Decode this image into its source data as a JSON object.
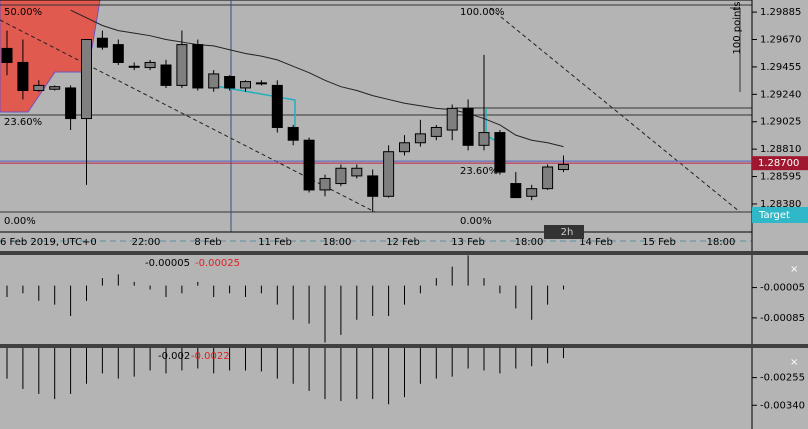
{
  "chart_data": [
    {
      "type": "candlestick",
      "up_color": "#7f7f7f",
      "down_color": "#000000",
      "ma_color": "#222222",
      "ylim": [
        1.2816,
        1.2998
      ],
      "yticks": [
        1.29885,
        {
          "value": 1.2967,
          "label": "1.29670"
        },
        1.29455,
        {
          "value": 1.2924,
          "label": "1.29240"
        },
        1.29025,
        {
          "value": 1.2881,
          "label": "1.28810"
        },
        1.28595,
        {
          "value": 1.2838,
          "label": "1.28380"
        }
      ],
      "current_price": {
        "value": 1.287,
        "label": "1.28700"
      },
      "open": [
        1.296,
        1.2949,
        1.2927,
        1.2928,
        1.2929,
        1.2905,
        1.2968,
        1.2963,
        1.2946,
        1.2945,
        1.2947,
        1.2931,
        1.2963,
        1.2929,
        1.2938,
        1.2929,
        1.2933,
        1.2931,
        1.2898,
        1.2888,
        1.2849,
        1.2854,
        1.286,
        1.286,
        1.2844,
        1.2879,
        1.2886,
        1.2891,
        1.2896,
        1.2913,
        1.2884,
        1.2894,
        1.2854,
        1.2844,
        1.285,
        1.2865
      ],
      "high": [
        1.2974,
        1.2967,
        1.2935,
        1.2931,
        1.2931,
        1.2967,
        1.2974,
        1.2967,
        1.2949,
        1.2951,
        1.2951,
        1.2974,
        1.2967,
        1.2943,
        1.2939,
        1.2935,
        1.2935,
        1.2935,
        1.29,
        1.289,
        1.2861,
        1.2869,
        1.2869,
        1.2865,
        1.2884,
        1.2892,
        1.2904,
        1.29,
        1.2916,
        1.292,
        1.2955,
        1.2896,
        1.2863,
        1.2853,
        1.2869,
        1.2876
      ],
      "low": [
        1.2939,
        1.292,
        1.2926,
        1.2927,
        1.2896,
        1.2853,
        1.2959,
        1.2947,
        1.2943,
        1.2943,
        1.2929,
        1.2929,
        1.2927,
        1.2926,
        1.2927,
        1.2926,
        1.2931,
        1.2894,
        1.2884,
        1.2847,
        1.2844,
        1.2852,
        1.2858,
        1.2832,
        1.2843,
        1.2876,
        1.2883,
        1.2888,
        1.2888,
        1.288,
        1.288,
        1.2861,
        1.2843,
        1.2841,
        1.2849,
        1.2863
      ],
      "close": [
        1.2949,
        1.2927,
        1.2931,
        1.293,
        1.2905,
        1.2967,
        1.2961,
        1.2949,
        1.2946,
        1.2949,
        1.2931,
        1.2963,
        1.2929,
        1.294,
        1.2929,
        1.2934,
        1.2933,
        1.2898,
        1.2888,
        1.2849,
        1.2858,
        1.2866,
        1.2866,
        1.2844,
        1.2879,
        1.2886,
        1.2893,
        1.2898,
        1.2913,
        1.2884,
        1.2894,
        1.2863,
        1.2843,
        1.285,
        1.2867,
        1.2869
      ],
      "ma": [
        null,
        null,
        null,
        null,
        1.299,
        1.2984,
        1.2978,
        1.2974,
        1.2972,
        1.297,
        1.2967,
        1.2965,
        1.2963,
        1.2962,
        1.2959,
        1.2956,
        1.2954,
        1.2951,
        1.2946,
        1.2941,
        1.2935,
        1.293,
        1.2927,
        1.2923,
        1.292,
        1.2917,
        1.2915,
        1.2913,
        1.2912,
        1.2909,
        1.2905,
        1.29,
        1.2892,
        1.2888,
        1.2886,
        1.2883
      ],
      "time_labels": [
        "6 Feb 2019, UTC+0",
        "22:00",
        "8 Feb",
        "11 Feb",
        "18:00",
        "12 Feb",
        "13 Feb",
        "18:00",
        "14 Feb",
        "15 Feb",
        "18:00"
      ],
      "annotations": [
        "50.00%",
        "23.60%",
        "0.00%",
        "100.00%",
        "23.60%",
        "0.00%",
        "100 points",
        "Target",
        "2h"
      ]
    },
    {
      "type": "bar",
      "color": "#000000",
      "ylim": [
        -0.00154,
        0.00081
      ],
      "yticks": [
        -5e-05,
        -0.00085
      ],
      "readouts": [
        "-0.00005",
        "-0.00025"
      ],
      "close_label": "×",
      "values": [
        -0.0003,
        -0.0002,
        -0.0004,
        -0.0005,
        -0.0008,
        -0.0004,
        0.0002,
        0.0003,
        0.0001,
        -0.0001,
        -0.0003,
        -0.0002,
        0.0001,
        -0.0003,
        -0.0002,
        -0.0003,
        -0.0002,
        -0.0005,
        -0.0009,
        -0.001,
        -0.0015,
        -0.0013,
        -0.0009,
        -0.0008,
        -0.0008,
        -0.0005,
        -0.0002,
        0.0002,
        0.0005,
        0.0008,
        0.0002,
        -0.0002,
        -0.0006,
        -0.0009,
        -0.0005,
        -0.0001
      ]
    },
    {
      "type": "bar",
      "color": "#000000",
      "ylim": [
        -0.00413,
        -0.00164
      ],
      "yticks": [
        {
          "value": -0.00255,
          "label": "-0.00255"
        },
        {
          "value": -0.0034,
          "label": "-0.00340"
        }
      ],
      "readouts": [
        "-0.002",
        "-0.0022"
      ],
      "close_label": "×",
      "values": [
        -0.00258,
        -0.0029,
        -0.00305,
        -0.00321,
        -0.00305,
        -0.00274,
        -0.00242,
        -0.00258,
        -0.00252,
        -0.00233,
        -0.00242,
        -0.00233,
        -0.00227,
        -0.00242,
        -0.00233,
        -0.00233,
        -0.00236,
        -0.00258,
        -0.00274,
        -0.00296,
        -0.00321,
        -0.00327,
        -0.00321,
        -0.00321,
        -0.00337,
        -0.00315,
        -0.00274,
        -0.00258,
        -0.00252,
        -0.00227,
        -0.00233,
        -0.00242,
        -0.00227,
        -0.0022,
        -0.00211,
        -0.00195
      ]
    }
  ]
}
